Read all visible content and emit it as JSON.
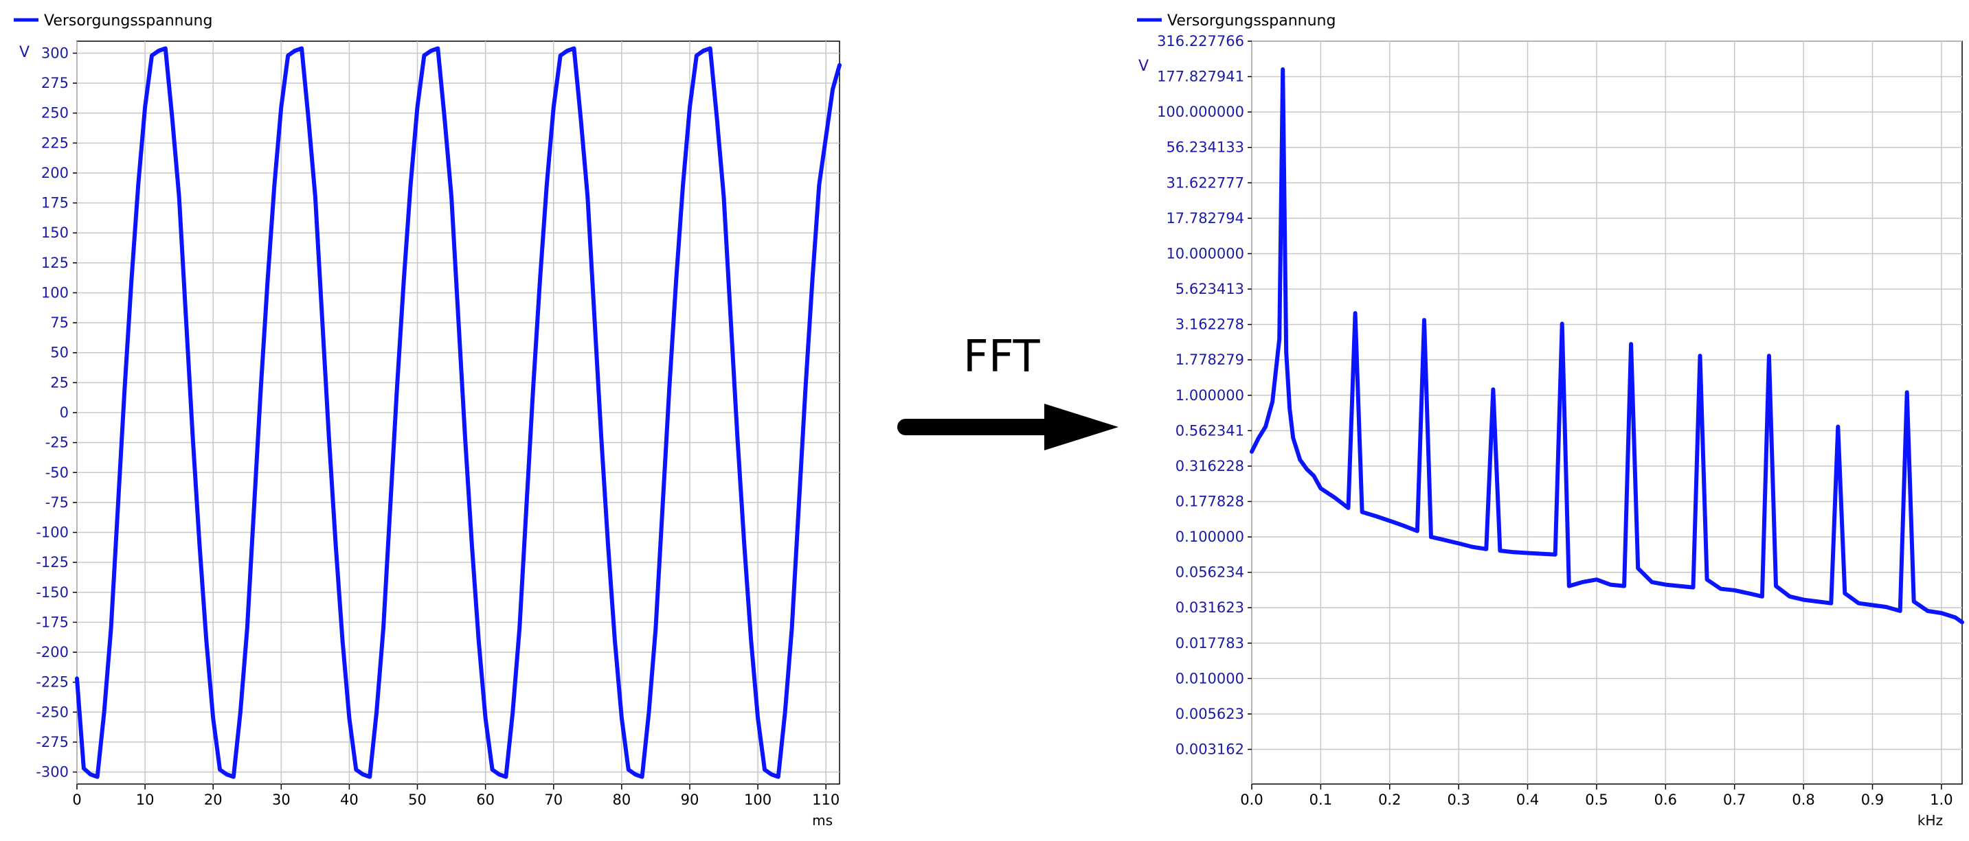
{
  "colors": {
    "series": "#0a14ff",
    "grid": "#c8c8c8",
    "axis": "#000000",
    "tick_text": "#1a1aa8",
    "arrow": "#000000"
  },
  "arrow_label": "FFT",
  "chart_data": [
    {
      "type": "line",
      "legend": "Versorgungsspannung",
      "unit_y": "V",
      "unit_x": "ms",
      "xlim": [
        0,
        112
      ],
      "ylim": [
        -310,
        310
      ],
      "x_ticks": [
        0,
        10,
        20,
        30,
        40,
        50,
        60,
        70,
        80,
        90,
        100,
        110
      ],
      "y_ticks": [
        300,
        275,
        250,
        225,
        200,
        175,
        150,
        125,
        100,
        75,
        50,
        25,
        0,
        -25,
        -50,
        -75,
        -100,
        -125,
        -150,
        -175,
        -200,
        -225,
        -250,
        -275,
        -300
      ],
      "grid": true,
      "series": [
        {
          "name": "Versorgungsspannung",
          "x": [
            0,
            1,
            2,
            3,
            4,
            5,
            6,
            7,
            8,
            9,
            10,
            11,
            12,
            13,
            14,
            15,
            16,
            17,
            18,
            19,
            20,
            21,
            22,
            23,
            24,
            25,
            26,
            27,
            28,
            29,
            30,
            31,
            32,
            33,
            34,
            35,
            36,
            37,
            38,
            39,
            40,
            41,
            42,
            43,
            44,
            45,
            46,
            47,
            48,
            49,
            50,
            51,
            52,
            53,
            54,
            55,
            56,
            57,
            58,
            59,
            60,
            61,
            62,
            63,
            64,
            65,
            66,
            67,
            68,
            69,
            70,
            71,
            72,
            73,
            74,
            75,
            76,
            77,
            78,
            79,
            80,
            81,
            82,
            83,
            84,
            85,
            86,
            87,
            88,
            89,
            90,
            91,
            92,
            93,
            94,
            95,
            96,
            97,
            98,
            99,
            100,
            101,
            102,
            103,
            104,
            105,
            106,
            107,
            108,
            109,
            110,
            111,
            112
          ],
          "y": [
            -222,
            -297,
            -302,
            -304,
            -250,
            -180,
            -80,
            20,
            110,
            190,
            255,
            298,
            302,
            304,
            245,
            180,
            80,
            -20,
            -110,
            -190,
            -255,
            -298,
            -302,
            -304,
            -250,
            -180,
            -80,
            20,
            110,
            190,
            255,
            298,
            302,
            304,
            245,
            180,
            80,
            -20,
            -110,
            -190,
            -255,
            -298,
            -302,
            -304,
            -250,
            -180,
            -80,
            20,
            110,
            190,
            255,
            298,
            302,
            304,
            245,
            180,
            80,
            -20,
            -110,
            -190,
            -255,
            -298,
            -302,
            -304,
            -250,
            -180,
            -80,
            20,
            110,
            190,
            255,
            298,
            302,
            304,
            245,
            180,
            80,
            -20,
            -110,
            -190,
            -255,
            -298,
            -302,
            -304,
            -250,
            -180,
            -80,
            20,
            110,
            190,
            255,
            298,
            302,
            304,
            245,
            180,
            80,
            -20,
            -110,
            -190,
            -255,
            -298,
            -302,
            -304,
            -250,
            -180,
            -80,
            20,
            110,
            190,
            230,
            270,
            290
          ]
        }
      ]
    },
    {
      "type": "line",
      "legend": "Versorgungsspannung",
      "unit_y": "V",
      "unit_x": "kHz",
      "y_scale": "log",
      "xlim": [
        0,
        1.03
      ],
      "ylim": [
        0.0018,
        316.227766
      ],
      "x_ticks": [
        0.0,
        0.1,
        0.2,
        0.3,
        0.4,
        0.5,
        0.6,
        0.7,
        0.8,
        0.9,
        1.0
      ],
      "x_tick_labels": [
        "0.0",
        "0.1",
        "0.2",
        "0.3",
        "0.4",
        "0.5",
        "0.6",
        "0.7",
        "0.8",
        "0.9",
        "1.0"
      ],
      "y_ticks": [
        316.227766,
        177.827941,
        100.0,
        56.234133,
        31.622777,
        17.782794,
        10.0,
        5.623413,
        3.162278,
        1.778279,
        1.0,
        0.562341,
        0.316228,
        0.177828,
        0.1,
        0.056234,
        0.031623,
        0.017783,
        0.01,
        0.005623,
        0.003162
      ],
      "y_tick_labels": [
        "316.227766",
        "177.827941",
        "100.000000",
        "56.234133",
        "31.622777",
        "17.782794",
        "10.000000",
        "5.623413",
        "3.162278",
        "1.778279",
        "1.000000",
        "0.562341",
        "0.316228",
        "0.177828",
        "0.100000",
        "0.056234",
        "0.031623",
        "0.017783",
        "0.010000",
        "0.005623",
        "0.003162"
      ],
      "grid": true,
      "series": [
        {
          "name": "Versorgungsspannung",
          "x": [
            0.0,
            0.01,
            0.02,
            0.03,
            0.04,
            0.045,
            0.05,
            0.055,
            0.06,
            0.07,
            0.08,
            0.09,
            0.1,
            0.12,
            0.14,
            0.15,
            0.16,
            0.18,
            0.2,
            0.22,
            0.24,
            0.25,
            0.26,
            0.28,
            0.3,
            0.32,
            0.34,
            0.35,
            0.36,
            0.38,
            0.4,
            0.42,
            0.44,
            0.45,
            0.46,
            0.48,
            0.5,
            0.52,
            0.54,
            0.55,
            0.56,
            0.58,
            0.6,
            0.62,
            0.64,
            0.65,
            0.66,
            0.68,
            0.7,
            0.72,
            0.74,
            0.75,
            0.76,
            0.78,
            0.8,
            0.82,
            0.84,
            0.85,
            0.86,
            0.88,
            0.9,
            0.92,
            0.94,
            0.95,
            0.96,
            0.98,
            1.0,
            1.02,
            1.03
          ],
          "y": [
            0.4,
            0.5,
            0.6,
            0.9,
            2.5,
            200,
            2.0,
            0.8,
            0.5,
            0.35,
            0.3,
            0.27,
            0.22,
            0.19,
            0.16,
            3.8,
            0.15,
            0.14,
            0.13,
            0.12,
            0.11,
            3.4,
            0.1,
            0.095,
            0.09,
            0.085,
            0.082,
            1.1,
            0.08,
            0.078,
            0.077,
            0.076,
            0.075,
            3.2,
            0.045,
            0.048,
            0.05,
            0.046,
            0.045,
            2.3,
            0.06,
            0.048,
            0.046,
            0.045,
            0.044,
            1.9,
            0.05,
            0.043,
            0.042,
            0.04,
            0.038,
            1.9,
            0.045,
            0.038,
            0.036,
            0.035,
            0.034,
            0.6,
            0.04,
            0.034,
            0.033,
            0.032,
            0.03,
            1.05,
            0.035,
            0.03,
            0.029,
            0.027,
            0.025
          ]
        }
      ]
    }
  ]
}
